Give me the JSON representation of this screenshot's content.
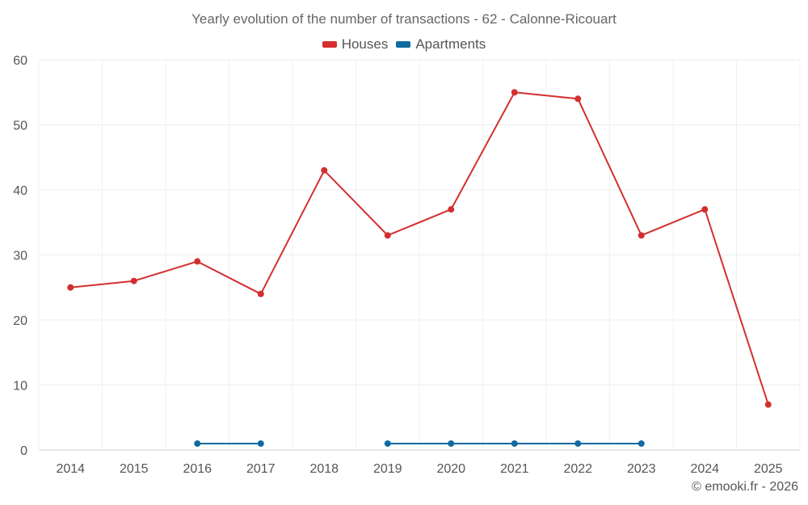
{
  "chart_data": {
    "type": "line",
    "title": "Yearly evolution of the number of transactions - 62 - Calonne-Ricouart",
    "xlabel": "",
    "ylabel": "",
    "categories": [
      "2014",
      "2015",
      "2016",
      "2017",
      "2018",
      "2019",
      "2020",
      "2021",
      "2022",
      "2023",
      "2024",
      "2025"
    ],
    "ylim": [
      0,
      60
    ],
    "yticks": [
      0,
      10,
      20,
      30,
      40,
      50,
      60
    ],
    "grid": true,
    "legend_position": "top-center",
    "series": [
      {
        "name": "Houses",
        "color": "#d32f2f",
        "values": [
          25,
          26,
          29,
          24,
          43,
          33,
          37,
          55,
          54,
          33,
          37,
          7
        ]
      },
      {
        "name": "Apartments",
        "color": "#0f6aa0",
        "values": [
          null,
          null,
          1,
          1,
          null,
          1,
          1,
          1,
          1,
          1,
          null,
          null
        ]
      }
    ]
  },
  "footer": {
    "copyright": "© emooki.fr - 2026"
  }
}
